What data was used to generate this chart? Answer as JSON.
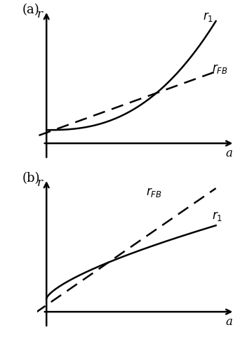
{
  "background_color": "#ffffff",
  "panel_a": {
    "label": "(a)",
    "x_label": "a",
    "y_label": "r",
    "r1_label": "$r_1$",
    "rfb_label": "$r_{FB}$"
  },
  "panel_b": {
    "label": "(b)",
    "x_label": "a",
    "y_label": "r",
    "rfb_label": "$r_{FB}$",
    "r1_label": "$r_1$"
  },
  "line_color": "#000000",
  "axis_color": "#000000",
  "lw": 1.8,
  "fontsize_label": 12,
  "fontsize_panel": 13,
  "fontsize_curve": 12
}
